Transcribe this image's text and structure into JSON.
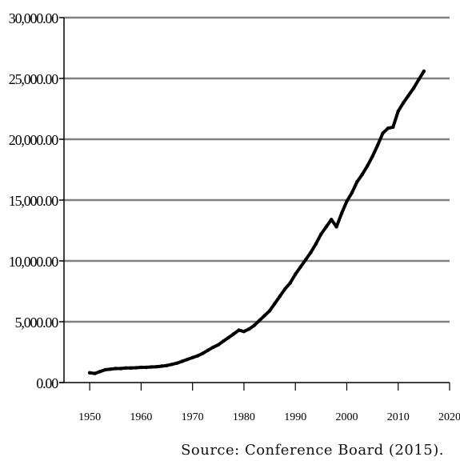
{
  "chart_data": {
    "type": "line",
    "title": "",
    "xlabel": "",
    "ylabel": "",
    "xlim": [
      1945,
      2020
    ],
    "ylim": [
      0,
      30000
    ],
    "x_ticks": [
      "1950",
      "1960",
      "1970",
      "1980",
      "1990",
      "2000",
      "2010",
      "2020"
    ],
    "x_tick_values": [
      1950,
      1960,
      1970,
      1980,
      1990,
      2000,
      2010,
      2020
    ],
    "y_ticks": [
      "0.00",
      "5,000.00",
      "10,000.00",
      "15,000.00",
      "20,000.00",
      "25,000.00",
      "30,000.00"
    ],
    "y_tick_values": [
      0,
      5000,
      10000,
      15000,
      20000,
      25000,
      30000
    ],
    "grid": "horizontal",
    "legend": "none",
    "line_color": "#000000",
    "grid_color": "#808080",
    "series": [
      {
        "x": [
          1950,
          1951,
          1952,
          1953,
          1954,
          1955,
          1956,
          1957,
          1958,
          1959,
          1960,
          1961,
          1962,
          1963,
          1964,
          1965,
          1966,
          1967,
          1968,
          1969,
          1970,
          1971,
          1972,
          1973,
          1974,
          1975,
          1976,
          1977,
          1978,
          1979,
          1980,
          1981,
          1982,
          1983,
          1984,
          1985,
          1986,
          1987,
          1988,
          1989,
          1990,
          1991,
          1992,
          1993,
          1994,
          1995,
          1996,
          1997,
          1998,
          1999,
          2000,
          2001,
          2002,
          2003,
          2004,
          2005,
          2006,
          2007,
          2008,
          2009,
          2010,
          2011,
          2012,
          2013,
          2014,
          2015
        ],
        "y": [
          800,
          750,
          900,
          1050,
          1100,
          1150,
          1150,
          1200,
          1200,
          1220,
          1250,
          1250,
          1280,
          1300,
          1350,
          1400,
          1500,
          1600,
          1750,
          1900,
          2050,
          2200,
          2400,
          2650,
          2900,
          3100,
          3400,
          3700,
          4000,
          4300,
          4200,
          4400,
          4700,
          5100,
          5500,
          5900,
          6500,
          7100,
          7700,
          8200,
          8900,
          9500,
          10100,
          10700,
          11400,
          12200,
          12800,
          13400,
          12800,
          13900,
          14900,
          15600,
          16500,
          17100,
          17800,
          18600,
          19500,
          20500,
          20900,
          21000,
          22300,
          23000,
          23600,
          24200,
          24900,
          25600
        ]
      }
    ],
    "source_note": "Source:  Conference  Board  (2015)."
  }
}
